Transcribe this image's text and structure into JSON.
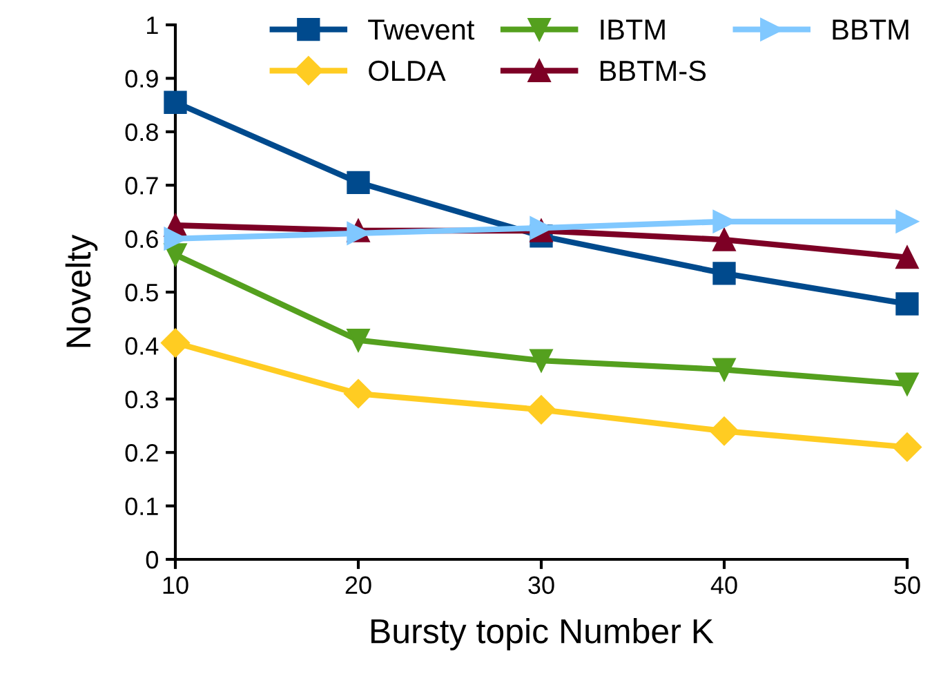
{
  "chart_data": {
    "type": "line",
    "xlabel": "Bursty topic Number K",
    "ylabel": "Novelty",
    "x": [
      10,
      20,
      30,
      40,
      50
    ],
    "series": [
      {
        "name": "Twevent",
        "color": "#004a8d",
        "marker": "square",
        "values": [
          0.855,
          0.705,
          0.605,
          0.535,
          0.478
        ]
      },
      {
        "name": "OLDA",
        "color": "#ffcc22",
        "marker": "diamond",
        "values": [
          0.405,
          0.31,
          0.28,
          0.24,
          0.21
        ]
      },
      {
        "name": "IBTM",
        "color": "#54a01e",
        "marker": "triangle_down",
        "values": [
          0.57,
          0.41,
          0.372,
          0.355,
          0.328
        ]
      },
      {
        "name": "BBTM-S",
        "color": "#7d0025",
        "marker": "triangle",
        "values": [
          0.625,
          0.615,
          0.615,
          0.598,
          0.565
        ]
      },
      {
        "name": "BBTM",
        "color": "#80c8ff",
        "marker": "triangle_right",
        "values": [
          0.6,
          0.61,
          0.62,
          0.632,
          0.632
        ]
      }
    ],
    "xlim": [
      10,
      50
    ],
    "xticks": [
      10,
      20,
      30,
      40,
      50
    ],
    "ylim": [
      0,
      1
    ],
    "yticks": [
      0,
      0.1,
      0.2,
      0.3,
      0.4,
      0.5,
      0.6,
      0.7,
      0.8,
      0.9,
      1
    ],
    "grid": false,
    "legend": "top right",
    "line_style": "solid"
  }
}
